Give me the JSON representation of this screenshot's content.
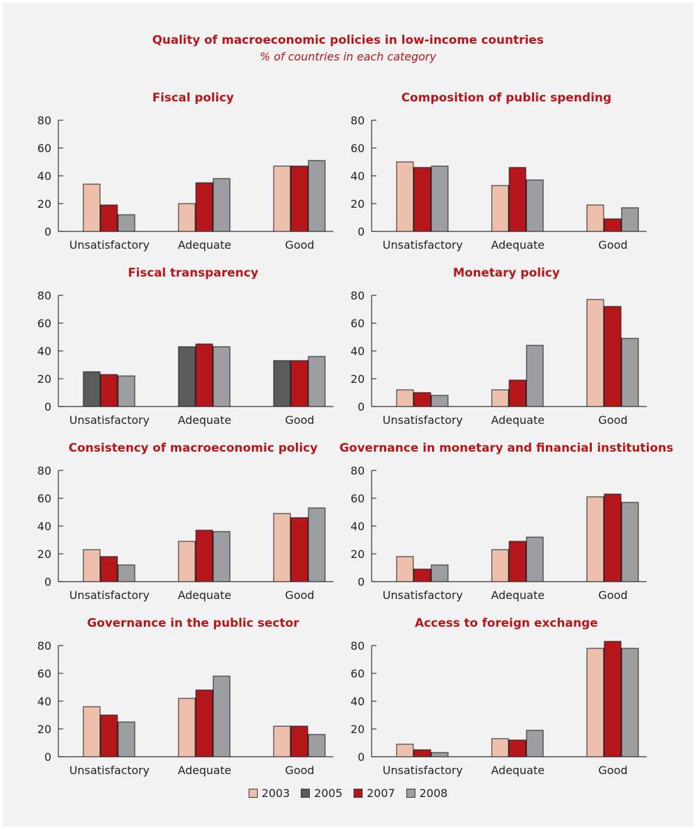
{
  "title": "Quality of macroeconomic policies in low-income countries",
  "subtitle": "% of countries in each category",
  "colors": {
    "2003": "#efbfae",
    "2005": "#5b5b5b",
    "2007": "#b5171b",
    "2008": "#9d9ea2"
  },
  "legend": [
    {
      "label": "2003",
      "color": "#efbfae"
    },
    {
      "label": "2005",
      "color": "#5b5b5b"
    },
    {
      "label": "2007",
      "color": "#b5171b"
    },
    {
      "label": "2008",
      "color": "#9d9ea2"
    }
  ],
  "chart_data": [
    {
      "type": "bar",
      "title": "Fiscal policy",
      "categories": [
        "Unsatisfactory",
        "Adequate",
        "Good"
      ],
      "ylim": [
        0,
        80
      ],
      "yticks": [
        0,
        20,
        40,
        60,
        80
      ],
      "series": [
        {
          "name": "2003",
          "values": [
            34,
            20,
            47
          ]
        },
        {
          "name": "2007",
          "values": [
            19,
            35,
            47
          ]
        },
        {
          "name": "2008",
          "values": [
            12,
            38,
            51
          ]
        }
      ]
    },
    {
      "type": "bar",
      "title": "Composition of public spending",
      "categories": [
        "Unsatisfactory",
        "Adequate",
        "Good"
      ],
      "ylim": [
        0,
        80
      ],
      "yticks": [
        0,
        20,
        40,
        60,
        80
      ],
      "series": [
        {
          "name": "2003",
          "values": [
            50,
            33,
            19
          ]
        },
        {
          "name": "2007",
          "values": [
            46,
            46,
            9
          ]
        },
        {
          "name": "2008",
          "values": [
            47,
            37,
            17
          ]
        }
      ]
    },
    {
      "type": "bar",
      "title": "Fiscal transparency",
      "categories": [
        "Unsatisfactory",
        "Adequate",
        "Good"
      ],
      "ylim": [
        0,
        80
      ],
      "yticks": [
        0,
        20,
        40,
        60,
        80
      ],
      "series": [
        {
          "name": "2005",
          "values": [
            25,
            43,
            33
          ]
        },
        {
          "name": "2007",
          "values": [
            23,
            45,
            33
          ]
        },
        {
          "name": "2008",
          "values": [
            22,
            43,
            36
          ]
        }
      ]
    },
    {
      "type": "bar",
      "title": "Monetary policy",
      "categories": [
        "Unsatisfactory",
        "Adequate",
        "Good"
      ],
      "ylim": [
        0,
        80
      ],
      "yticks": [
        0,
        20,
        40,
        60,
        80
      ],
      "series": [
        {
          "name": "2003",
          "values": [
            12,
            12,
            77
          ]
        },
        {
          "name": "2007",
          "values": [
            10,
            19,
            72
          ]
        },
        {
          "name": "2008",
          "values": [
            8,
            44,
            49
          ]
        }
      ]
    },
    {
      "type": "bar",
      "title": "Consistency of macroeconomic policy",
      "categories": [
        "Unsatisfactory",
        "Adequate",
        "Good"
      ],
      "ylim": [
        0,
        80
      ],
      "yticks": [
        0,
        20,
        40,
        60,
        80
      ],
      "series": [
        {
          "name": "2003",
          "values": [
            23,
            29,
            49
          ]
        },
        {
          "name": "2007",
          "values": [
            18,
            37,
            46
          ]
        },
        {
          "name": "2008",
          "values": [
            12,
            36,
            53
          ]
        }
      ]
    },
    {
      "type": "bar",
      "title": "Governance in monetary and financial institutions",
      "categories": [
        "Unsatisfactory",
        "Adequate",
        "Good"
      ],
      "ylim": [
        0,
        80
      ],
      "yticks": [
        0,
        20,
        40,
        60,
        80
      ],
      "series": [
        {
          "name": "2003",
          "values": [
            18,
            23,
            61
          ]
        },
        {
          "name": "2007",
          "values": [
            9,
            29,
            63
          ]
        },
        {
          "name": "2008",
          "values": [
            12,
            32,
            57
          ]
        }
      ]
    },
    {
      "type": "bar",
      "title": "Governance in the public sector",
      "categories": [
        "Unsatisfactory",
        "Adequate",
        "Good"
      ],
      "ylim": [
        0,
        80
      ],
      "yticks": [
        0,
        20,
        40,
        60,
        80
      ],
      "series": [
        {
          "name": "2003",
          "values": [
            36,
            42,
            22
          ]
        },
        {
          "name": "2007",
          "values": [
            30,
            48,
            22
          ]
        },
        {
          "name": "2008",
          "values": [
            25,
            58,
            16
          ]
        }
      ]
    },
    {
      "type": "bar",
      "title": "Access to foreign exchange",
      "categories": [
        "Unsatisfactory",
        "Adequate",
        "Good"
      ],
      "ylim": [
        0,
        80
      ],
      "yticks": [
        0,
        20,
        40,
        60,
        80
      ],
      "series": [
        {
          "name": "2003",
          "values": [
            9,
            13,
            78
          ]
        },
        {
          "name": "2007",
          "values": [
            5,
            12,
            83
          ]
        },
        {
          "name": "2008",
          "values": [
            3,
            19,
            78
          ]
        }
      ]
    }
  ]
}
